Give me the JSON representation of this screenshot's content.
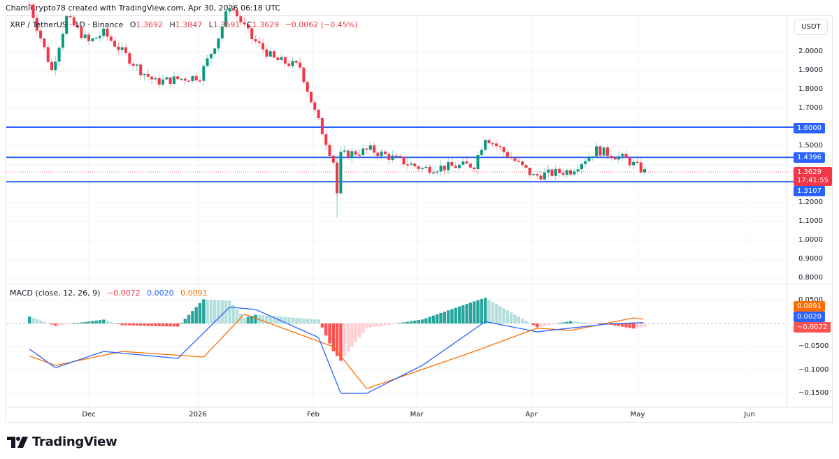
{
  "attribution": "ChamiCrypto78 created with TradingView.com, Apr 30, 2026 06:18 UTC",
  "legend": {
    "symbol": "XRP / TetherUS · 1D · Binance",
    "open_label": "O",
    "open": "1.3692",
    "high_label": "H",
    "high": "1.3847",
    "low_label": "L",
    "low": "1.3591",
    "close_label": "C",
    "close": "1.3629",
    "change": "−0.0062 (−0.45%)"
  },
  "currency": "USDT",
  "price_axis": [
    "2.0000",
    "1.9000",
    "1.8000",
    "1.7000",
    "1.5000",
    "1.2000",
    "1.1000",
    "1.0000",
    "0.9000",
    "0.8000"
  ],
  "macd_axis": [
    "0.0500",
    "−0.0500",
    "−0.1000",
    "−0.1500"
  ],
  "tags": {
    "level_1600": "1.6000",
    "level_1439": "1.4396",
    "last_price": "1.3629",
    "countdown": "17:41:55",
    "level_1310": "1.3107",
    "signal": "0.0091",
    "macd": "0.0020",
    "hist": "−0.0072"
  },
  "macd_legend": {
    "label": "MACD (close, 12, 26, 9)",
    "hist": "−0.0072",
    "macd": "0.0020",
    "signal": "0.0091"
  },
  "x_axis": [
    "Dec",
    "2026",
    "Feb",
    "Mar",
    "Apr",
    "May",
    "Jun"
  ],
  "logo": "TradingView",
  "colors": {
    "up": "#089981",
    "down": "#f23645",
    "hline": "#2962ff",
    "macd": "#2962ff",
    "signal": "#ff6d00",
    "hist_up_strong": "#26a69a",
    "hist_up_weak": "#b2dfdb",
    "hist_down_strong": "#ff5252",
    "hist_down_weak": "#ffcdd2"
  },
  "chart_data": {
    "type": "candlestick",
    "title": "XRP / TetherUS · 1D · Binance",
    "ylabel": "USDT",
    "ylim": [
      0.75,
      2.2
    ],
    "x_ticks": [
      "Dec",
      "2026",
      "Feb",
      "Mar",
      "Apr",
      "May",
      "Jun"
    ],
    "horizontal_lines": [
      1.6,
      1.4396,
      1.3107
    ],
    "last": {
      "open": 1.3692,
      "high": 1.3847,
      "low": 1.3591,
      "close": 1.3629,
      "change": -0.0062,
      "change_pct": -0.45
    },
    "price_path_approx": [
      {
        "date": "2025-11-15",
        "close": 2.25
      },
      {
        "date": "2025-11-21",
        "close": 1.9
      },
      {
        "date": "2025-11-25",
        "close": 2.18
      },
      {
        "date": "2025-12-01",
        "close": 2.05
      },
      {
        "date": "2025-12-05",
        "close": 2.1
      },
      {
        "date": "2025-12-15",
        "close": 1.9
      },
      {
        "date": "2025-12-19",
        "close": 1.84
      },
      {
        "date": "2025-12-31",
        "close": 1.87
      },
      {
        "date": "2026-01-05",
        "close": 2.08
      },
      {
        "date": "2026-01-08",
        "close": 2.25
      },
      {
        "date": "2026-01-14",
        "close": 2.07
      },
      {
        "date": "2026-01-20",
        "close": 1.96
      },
      {
        "date": "2026-01-27",
        "close": 1.92
      },
      {
        "date": "2026-01-31",
        "close": 1.68
      },
      {
        "date": "2026-02-05",
        "close": 1.42
      },
      {
        "date": "2026-02-06",
        "close": 1.25
      },
      {
        "date": "2026-02-07",
        "close": 1.45
      },
      {
        "date": "2026-02-15",
        "close": 1.48
      },
      {
        "date": "2026-03-01",
        "close": 1.38
      },
      {
        "date": "2026-03-15",
        "close": 1.4
      },
      {
        "date": "2026-03-18",
        "close": 1.55
      },
      {
        "date": "2026-03-31",
        "close": 1.34
      },
      {
        "date": "2026-04-10",
        "close": 1.37
      },
      {
        "date": "2026-04-17",
        "close": 1.48
      },
      {
        "date": "2026-04-25",
        "close": 1.43
      },
      {
        "date": "2026-04-30",
        "close": 1.3629
      }
    ],
    "indicator": {
      "name": "MACD (close, 12, 26, 9)",
      "ylim": [
        -0.17,
        0.07
      ],
      "last": {
        "histogram": -0.0072,
        "macd": 0.002,
        "signal": 0.0091
      },
      "macd_path_approx": [
        {
          "date": "2025-11-15",
          "value": -0.055
        },
        {
          "date": "2025-11-22",
          "value": -0.095
        },
        {
          "date": "2025-12-05",
          "value": -0.06
        },
        {
          "date": "2025-12-25",
          "value": -0.075
        },
        {
          "date": "2026-01-08",
          "value": 0.035
        },
        {
          "date": "2026-01-15",
          "value": 0.03
        },
        {
          "date": "2026-02-01",
          "value": -0.03
        },
        {
          "date": "2026-02-07",
          "value": -0.15
        },
        {
          "date": "2026-02-14",
          "value": -0.15
        },
        {
          "date": "2026-03-01",
          "value": -0.09
        },
        {
          "date": "2026-03-18",
          "value": 0.004
        },
        {
          "date": "2026-04-01",
          "value": -0.018
        },
        {
          "date": "2026-04-20",
          "value": -0.001
        },
        {
          "date": "2026-04-30",
          "value": 0.002
        }
      ],
      "signal_path_approx": [
        {
          "date": "2025-11-15",
          "value": -0.07
        },
        {
          "date": "2025-11-22",
          "value": -0.09
        },
        {
          "date": "2025-12-10",
          "value": -0.06
        },
        {
          "date": "2026-01-01",
          "value": -0.072
        },
        {
          "date": "2026-01-12",
          "value": 0.02
        },
        {
          "date": "2026-02-05",
          "value": -0.05
        },
        {
          "date": "2026-02-14",
          "value": -0.14
        },
        {
          "date": "2026-03-15",
          "value": -0.06
        },
        {
          "date": "2026-04-01",
          "value": -0.01
        },
        {
          "date": "2026-04-10",
          "value": -0.015
        },
        {
          "date": "2026-04-27",
          "value": 0.012
        },
        {
          "date": "2026-04-30",
          "value": 0.009
        }
      ]
    }
  }
}
